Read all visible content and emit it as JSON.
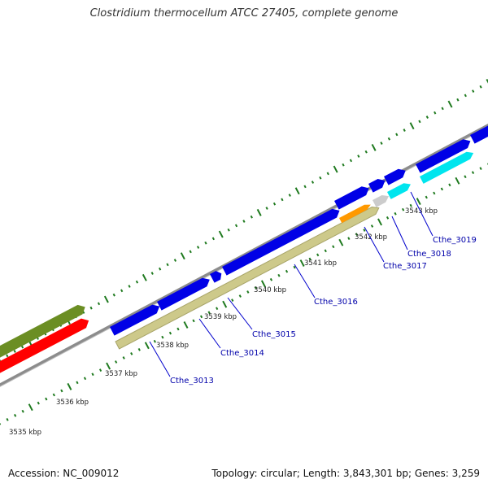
{
  "title": "Clostridium thermocellum ATCC 27405, complete genome",
  "colors": {
    "tick": "#1f7a1f",
    "backbone": "#8c8c8c",
    "cds_forward": "#0000e6",
    "cds_reverse_yellow": "#cdc98a",
    "olive": "#6b8e23",
    "red": "#ff0000",
    "cyan": "#00e5ee",
    "orange": "#ff9900",
    "grey": "#cccccc",
    "label_line": "#0000cc"
  },
  "scale": {
    "unit": "kbp",
    "labels": [
      {
        "pos": 3535,
        "text": "3535 kbp"
      },
      {
        "pos": 3536,
        "text": "3536 kbp"
      },
      {
        "pos": 3537,
        "text": "3537 kbp"
      },
      {
        "pos": 3538,
        "text": "3538 kbp"
      },
      {
        "pos": 3539,
        "text": "3539 kbp"
      },
      {
        "pos": 3540,
        "text": "3540 kbp"
      },
      {
        "pos": 3541,
        "text": "3541 kbp"
      },
      {
        "pos": 3542,
        "text": "3542 kbp"
      },
      {
        "pos": 3543,
        "text": "3543 kbp"
      }
    ]
  },
  "genes": [
    {
      "label": "Cthe_3013"
    },
    {
      "label": "Cthe_3014"
    },
    {
      "label": "Cthe_3015"
    },
    {
      "label": "Cthe_3016"
    },
    {
      "label": "Cthe_3017"
    },
    {
      "label": "Cthe_3018"
    },
    {
      "label": "Cthe_3019"
    }
  ],
  "footer": {
    "accession": "Accession: NC_009012",
    "topology": "Topology: circular; Length: 3,843,301 bp; Genes: 3,259"
  }
}
